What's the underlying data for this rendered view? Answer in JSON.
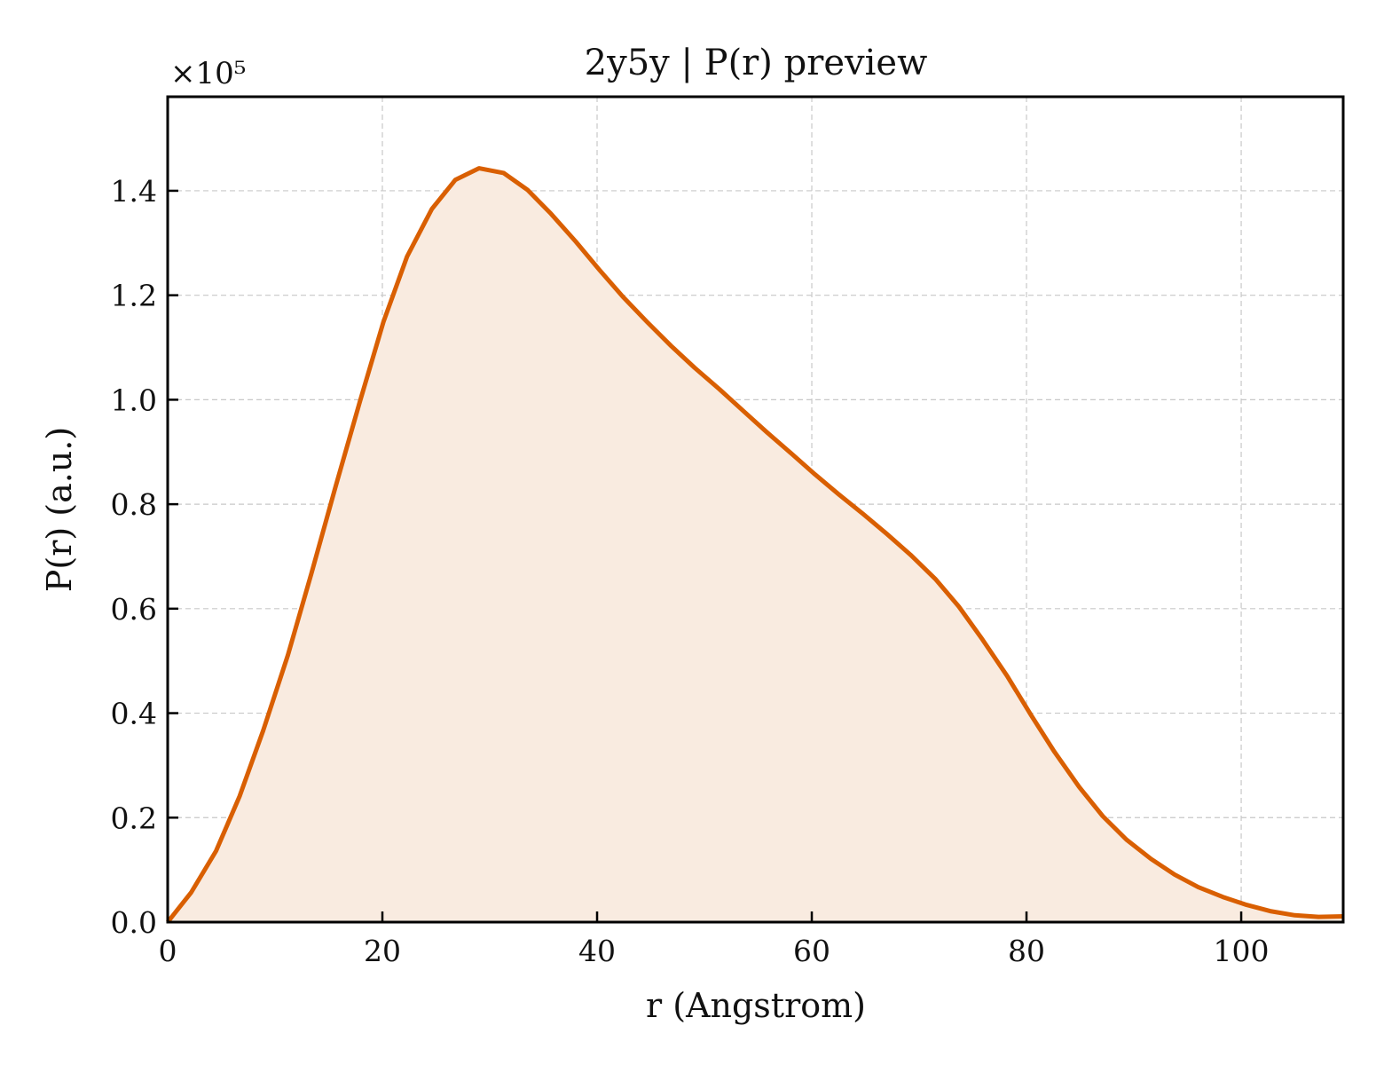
{
  "chart_data": {
    "type": "area",
    "title": "2y5y | P(r) preview",
    "xlabel": "r (Angstrom)",
    "ylabel": "P(r) (a.u.)",
    "y_scale_label": "×10⁵",
    "y_multiplier": 100000,
    "xlim": [
      0,
      109.5
    ],
    "ylim": [
      0,
      1.58
    ],
    "xticks": [
      0,
      20,
      40,
      60,
      80,
      100
    ],
    "xtick_labels": [
      "0",
      "20",
      "40",
      "60",
      "80",
      "100"
    ],
    "yticks": [
      0.0,
      0.2,
      0.4,
      0.6,
      0.8,
      1.0,
      1.2,
      1.4
    ],
    "ytick_labels": [
      "0.0",
      "0.2",
      "0.4",
      "0.6",
      "0.8",
      "1.0",
      "1.2",
      "1.4"
    ],
    "grid": true,
    "colors": {
      "line": "#d95f02",
      "fill": "#f9ebe0"
    },
    "series": [
      {
        "x": [
          0,
          2.2,
          4.5,
          6.7,
          8.9,
          11.2,
          13.4,
          15.6,
          17.9,
          20.1,
          22.3,
          24.6,
          26.8,
          29.0,
          31.3,
          33.5,
          35.7,
          38.0,
          40.2,
          42.4,
          44.7,
          46.9,
          49.1,
          51.4,
          53.6,
          55.8,
          58.1,
          60.3,
          62.5,
          64.8,
          67.0,
          69.2,
          71.5,
          73.7,
          75.9,
          78.2,
          80.4,
          82.6,
          84.9,
          87.1,
          89.3,
          91.6,
          93.8,
          96.0,
          98.3,
          100.5,
          102.7,
          105.0,
          107.2,
          109.5
        ],
        "y": [
          0.0,
          0.057,
          0.136,
          0.241,
          0.367,
          0.511,
          0.668,
          0.831,
          0.996,
          1.149,
          1.274,
          1.365,
          1.421,
          1.443,
          1.434,
          1.402,
          1.356,
          1.303,
          1.249,
          1.197,
          1.148,
          1.103,
          1.061,
          1.02,
          0.979,
          0.938,
          0.897,
          0.857,
          0.819,
          0.781,
          0.743,
          0.703,
          0.657,
          0.604,
          0.541,
          0.471,
          0.397,
          0.326,
          0.259,
          0.203,
          0.158,
          0.121,
          0.091,
          0.067,
          0.048,
          0.033,
          0.021,
          0.013,
          0.01,
          0.011
        ]
      }
    ]
  }
}
